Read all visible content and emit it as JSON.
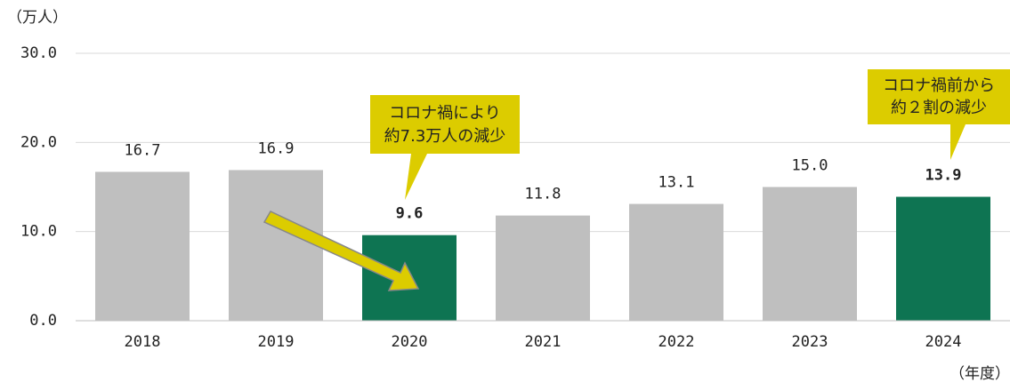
{
  "chart_data": {
    "type": "bar",
    "y_label": "（万人）",
    "x_label": "（年度）",
    "categories": [
      "2018",
      "2019",
      "2020",
      "2021",
      "2022",
      "2023",
      "2024"
    ],
    "values": [
      16.7,
      16.9,
      9.6,
      11.8,
      13.1,
      15.0,
      13.9
    ],
    "value_labels": [
      "16.7",
      "16.9",
      "9.6",
      "11.8",
      "13.1",
      "15.0",
      "13.9"
    ],
    "colors": [
      "#bfbfbf",
      "#bfbfbf",
      "#0e7452",
      "#bfbfbf",
      "#bfbfbf",
      "#bfbfbf",
      "#0e7452"
    ],
    "ylim": [
      0,
      30
    ],
    "yticks": [
      {
        "value": 0,
        "label": "0.0"
      },
      {
        "value": 10,
        "label": "10.0"
      },
      {
        "value": 20,
        "label": "20.0"
      },
      {
        "value": 30,
        "label": "30.0"
      }
    ],
    "grid": true,
    "annotations": [
      {
        "lines": [
          "コロナ禍により",
          "約7.3万人の減少"
        ]
      },
      {
        "lines": [
          "コロナ禍前から",
          "約２割の減少"
        ]
      }
    ]
  }
}
